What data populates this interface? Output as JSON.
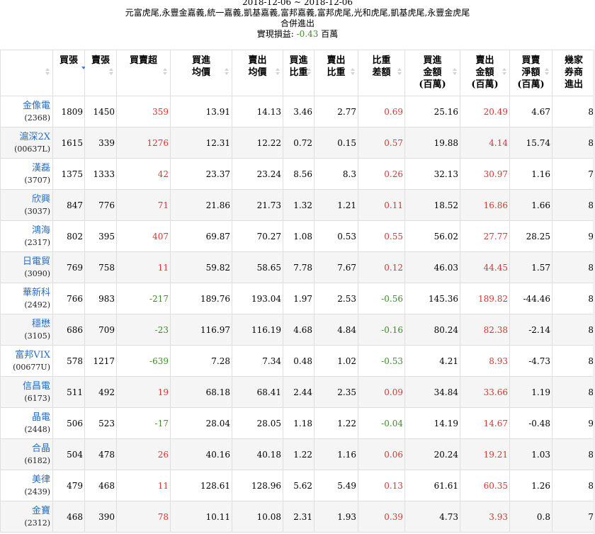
{
  "header": {
    "date_range": "2018-12-06 ~ 2018-12-06",
    "brokers": "元富虎尾,永豐金嘉義,統一嘉義,凱基嘉義,富邦嘉義,富邦虎尾,光和虎尾,凱基虎尾,永豐金虎尾",
    "subtitle": "合併進出",
    "pl_label": "實現損益: ",
    "pl_value": "-0.43",
    "pl_unit": " 百萬"
  },
  "columns": [
    {
      "label": "",
      "sort": "both"
    },
    {
      "label": "買張",
      "sort": "desc"
    },
    {
      "label": "賣張",
      "sort": "both"
    },
    {
      "label": "買賣超",
      "sort": "both"
    },
    {
      "label": "買進\n均價",
      "sort": "both"
    },
    {
      "label": "賣出\n均價",
      "sort": "both"
    },
    {
      "label": "買進\n比重",
      "sort": "both"
    },
    {
      "label": "賣出\n比重",
      "sort": "both"
    },
    {
      "label": "比重\n差額",
      "sort": "both"
    },
    {
      "label": "買進\n金額\n(百萬)",
      "sort": "both"
    },
    {
      "label": "賣出\n金額\n(百萬)",
      "sort": "both"
    },
    {
      "label": "買賣\n淨額\n(百萬)",
      "sort": "both"
    },
    {
      "label": "幾家\n券商\n進出",
      "sort": "none"
    }
  ],
  "rows": [
    {
      "name": "金像電",
      "code": "(2368)",
      "buy": "1809",
      "sell": "1450",
      "net": "359",
      "buy_avg": "13.91",
      "sell_avg": "14.13",
      "buy_w": "3.46",
      "sell_w": "2.77",
      "diff_w": "0.69",
      "buy_amt": "25.16",
      "sell_amt": "20.49",
      "net_amt": "4.67",
      "brokers": "8"
    },
    {
      "name": "滬深2X",
      "code": "(00637L)",
      "buy": "1615",
      "sell": "339",
      "net": "1276",
      "buy_avg": "12.31",
      "sell_avg": "12.22",
      "buy_w": "0.72",
      "sell_w": "0.15",
      "diff_w": "0.57",
      "buy_amt": "19.88",
      "sell_amt": "4.14",
      "net_amt": "15.74",
      "brokers": "8"
    },
    {
      "name": "漢磊",
      "code": "(3707)",
      "buy": "1375",
      "sell": "1333",
      "net": "42",
      "buy_avg": "23.37",
      "sell_avg": "23.24",
      "buy_w": "8.56",
      "sell_w": "8.3",
      "diff_w": "0.26",
      "buy_amt": "32.13",
      "sell_amt": "30.97",
      "net_amt": "1.16",
      "brokers": "7"
    },
    {
      "name": "欣興",
      "code": "(3037)",
      "buy": "847",
      "sell": "776",
      "net": "71",
      "buy_avg": "21.86",
      "sell_avg": "21.73",
      "buy_w": "1.32",
      "sell_w": "1.21",
      "diff_w": "0.11",
      "buy_amt": "18.52",
      "sell_amt": "16.86",
      "net_amt": "1.66",
      "brokers": "8"
    },
    {
      "name": "鴻海",
      "code": "(2317)",
      "buy": "802",
      "sell": "395",
      "net": "407",
      "buy_avg": "69.87",
      "sell_avg": "70.27",
      "buy_w": "1.08",
      "sell_w": "0.53",
      "diff_w": "0.55",
      "buy_amt": "56.02",
      "sell_amt": "27.77",
      "net_amt": "28.25",
      "brokers": "9"
    },
    {
      "name": "日電貿",
      "code": "(3090)",
      "buy": "769",
      "sell": "758",
      "net": "11",
      "buy_avg": "59.82",
      "sell_avg": "58.65",
      "buy_w": "7.78",
      "sell_w": "7.67",
      "diff_w": "0.12",
      "buy_amt": "46.03",
      "sell_amt": "44.45",
      "net_amt": "1.57",
      "brokers": "8"
    },
    {
      "name": "華新科",
      "code": "(2492)",
      "buy": "766",
      "sell": "983",
      "net": "-217",
      "buy_avg": "189.76",
      "sell_avg": "193.04",
      "buy_w": "1.97",
      "sell_w": "2.53",
      "diff_w": "-0.56",
      "buy_amt": "145.36",
      "sell_amt": "189.82",
      "net_amt": "-44.46",
      "brokers": "8"
    },
    {
      "name": "穩懋",
      "code": "(3105)",
      "buy": "686",
      "sell": "709",
      "net": "-23",
      "buy_avg": "116.97",
      "sell_avg": "116.19",
      "buy_w": "4.68",
      "sell_w": "4.84",
      "diff_w": "-0.16",
      "buy_amt": "80.24",
      "sell_amt": "82.38",
      "net_amt": "-2.14",
      "brokers": "8"
    },
    {
      "name": "富邦VIX",
      "code": "(00677U)",
      "buy": "578",
      "sell": "1217",
      "net": "-639",
      "buy_avg": "7.28",
      "sell_avg": "7.34",
      "buy_w": "0.48",
      "sell_w": "1.02",
      "diff_w": "-0.53",
      "buy_amt": "4.21",
      "sell_amt": "8.93",
      "net_amt": "-4.73",
      "brokers": "8"
    },
    {
      "name": "信昌電",
      "code": "(6173)",
      "buy": "511",
      "sell": "492",
      "net": "19",
      "buy_avg": "68.18",
      "sell_avg": "68.41",
      "buy_w": "2.44",
      "sell_w": "2.35",
      "diff_w": "0.09",
      "buy_amt": "34.84",
      "sell_amt": "33.66",
      "net_amt": "1.19",
      "brokers": "8"
    },
    {
      "name": "晶電",
      "code": "(2448)",
      "buy": "506",
      "sell": "523",
      "net": "-17",
      "buy_avg": "28.04",
      "sell_avg": "28.05",
      "buy_w": "1.18",
      "sell_w": "1.22",
      "diff_w": "-0.04",
      "buy_amt": "14.19",
      "sell_amt": "14.67",
      "net_amt": "-0.48",
      "brokers": "9"
    },
    {
      "name": "合晶",
      "code": "(6182)",
      "buy": "504",
      "sell": "478",
      "net": "26",
      "buy_avg": "40.16",
      "sell_avg": "40.18",
      "buy_w": "1.22",
      "sell_w": "1.16",
      "diff_w": "0.06",
      "buy_amt": "20.24",
      "sell_amt": "19.21",
      "net_amt": "1.03",
      "brokers": "8"
    },
    {
      "name": "美律",
      "code": "(2439)",
      "buy": "479",
      "sell": "468",
      "net": "11",
      "buy_avg": "128.61",
      "sell_avg": "128.96",
      "buy_w": "5.62",
      "sell_w": "5.49",
      "diff_w": "0.13",
      "buy_amt": "61.61",
      "sell_amt": "60.35",
      "net_amt": "1.26",
      "brokers": "8"
    },
    {
      "name": "金寶",
      "code": "(2312)",
      "buy": "468",
      "sell": "390",
      "net": "78",
      "buy_avg": "10.11",
      "sell_avg": "10.08",
      "buy_w": "2.31",
      "sell_w": "1.93",
      "diff_w": "0.39",
      "buy_amt": "4.73",
      "sell_amt": "3.93",
      "net_amt": "0.8",
      "brokers": "7"
    }
  ],
  "colors": {
    "positive": "#e03030",
    "negative": "#3c8c28",
    "link": "#2a6ebb",
    "sort_active": "#4a7fd1"
  },
  "icons": {
    "sort_both": "sort-arrows-icon",
    "sort_desc": "sort-desc-icon"
  }
}
